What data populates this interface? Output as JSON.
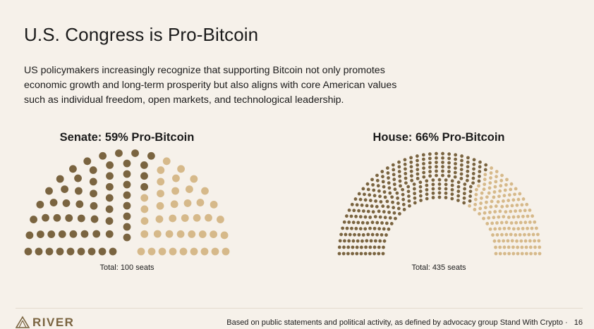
{
  "page": {
    "title": "U.S. Congress is Pro-Bitcoin",
    "subtitle": "US policymakers increasingly recognize that supporting Bitcoin not only promotes economic growth and long-term prosperity but also aligns with core American values such as individual freedom, open markets, and technological leadership."
  },
  "colors": {
    "pro": "#7a6440",
    "other": "#d6b98a",
    "background": "#f6f1ea"
  },
  "chart_data": [
    {
      "type": "parliament",
      "title": "Senate: 59% Pro-Bitcoin",
      "total_label": "Total: 100 seats",
      "total_seats": 100,
      "series": [
        {
          "name": "Pro-Bitcoin",
          "value": 59
        },
        {
          "name": "Other",
          "value": 41
        }
      ]
    },
    {
      "type": "parliament",
      "title": "House: 66% Pro-Bitcoin",
      "total_label": "Total: 435 seats",
      "total_seats": 435,
      "series": [
        {
          "name": "Pro-Bitcoin",
          "value": 287
        },
        {
          "name": "Other",
          "value": 148
        }
      ]
    }
  ],
  "footer": {
    "logo_text": "RIVER",
    "logo_icon": "river-mountain-icon",
    "note": "Based on public statements and political activity, as defined by advocacy group Stand With Crypto ·",
    "page_number": "16"
  }
}
